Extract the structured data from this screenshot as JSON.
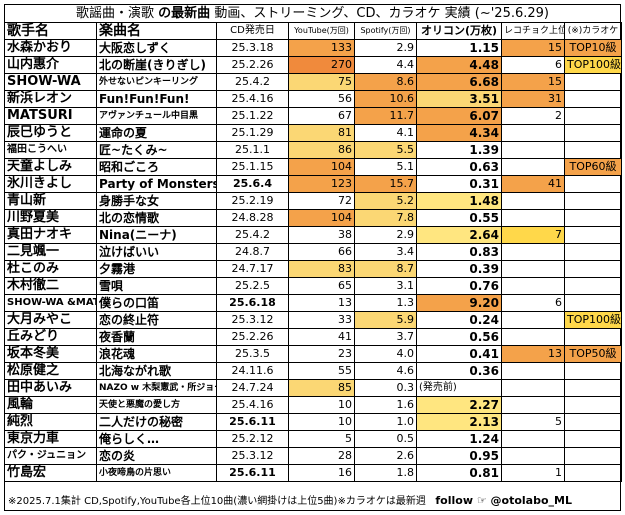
{
  "title": {
    "part1": "歌謡曲・演歌",
    "part2": "の最新曲",
    "part3": "動画、ストリーミング、CD、カラオケ 実績",
    "part4": "(~'25.6.29)"
  },
  "headers": {
    "artist": "歌手名",
    "song": "楽曲名",
    "date": "CD発売日",
    "youtube": "YouTube(万回)",
    "spotify": "Spotify(万回)",
    "oricon": "オリコン(万枚)",
    "recochoku": "レコチョク上位",
    "karaoke": "(※)カラオケ"
  },
  "rows": [
    {
      "artist": "水森かおり",
      "song": "大阪恋しずく",
      "date": "25.3.18",
      "yt": "133",
      "sp": "2.9",
      "or": "1.15",
      "rc": "15",
      "kr": "TOP10級"
    },
    {
      "artist": "山内惠介",
      "song": "北の断崖(きりぎし)",
      "date": "25.2.26",
      "yt": "270",
      "sp": "4.4",
      "or": "4.48",
      "rc": "6",
      "kr": "TOP100級"
    },
    {
      "artist": "SHOW-WA",
      "song": "外せないピンキーリング",
      "date": "25.4.2",
      "yt": "75",
      "sp": "8.6",
      "or": "6.68",
      "rc": "15",
      "kr": ""
    },
    {
      "artist": "新浜レオン",
      "song": "Fun!Fun!Fun!",
      "date": "25.4.16",
      "yt": "56",
      "sp": "10.6",
      "or": "3.51",
      "rc": "31",
      "kr": ""
    },
    {
      "artist": "MATSURI",
      "song": "アヴァンチュール中目黒",
      "date": "25.1.22",
      "yt": "67",
      "sp": "11.7",
      "or": "6.07",
      "rc": "2",
      "kr": ""
    },
    {
      "artist": "辰巳ゆうと",
      "song": "運命の夏",
      "date": "25.1.29",
      "yt": "81",
      "sp": "4.1",
      "or": "4.34",
      "rc": "",
      "kr": ""
    },
    {
      "artist": "福田こうへい",
      "song": "匠~たくみ~",
      "date": "25.1.1",
      "yt": "86",
      "sp": "5.5",
      "or": "1.39",
      "rc": "",
      "kr": ""
    },
    {
      "artist": "天童よしみ",
      "song": "昭和ごころ",
      "date": "25.1.15",
      "yt": "104",
      "sp": "5.1",
      "or": "0.63",
      "rc": "",
      "kr": "TOP60級"
    },
    {
      "artist": "氷川きよし",
      "song": "Party of Monsters",
      "date": "25.6.4",
      "yt": "123",
      "sp": "15.7",
      "or": "0.31",
      "rc": "41",
      "kr": ""
    },
    {
      "artist": "青山新",
      "song": "身勝手な女",
      "date": "25.2.19",
      "yt": "72",
      "sp": "5.2",
      "or": "1.48",
      "rc": "",
      "kr": ""
    },
    {
      "artist": "川野夏美",
      "song": "北の恋情歌",
      "date": "24.8.28",
      "yt": "104",
      "sp": "7.8",
      "or": "0.55",
      "rc": "",
      "kr": ""
    },
    {
      "artist": "真田ナオキ",
      "song": "Nina(ニーナ)",
      "date": "25.4.2",
      "yt": "38",
      "sp": "2.9",
      "or": "2.64",
      "rc": "7",
      "kr": ""
    },
    {
      "artist": "二見颯一",
      "song": "泣けばいい",
      "date": "24.8.7",
      "yt": "66",
      "sp": "3.4",
      "or": "0.83",
      "rc": "",
      "kr": ""
    },
    {
      "artist": "杜このみ",
      "song": "夕霧港",
      "date": "24.7.17",
      "yt": "83",
      "sp": "8.7",
      "or": "0.39",
      "rc": "",
      "kr": ""
    },
    {
      "artist": "木村徹二",
      "song": "雪唄",
      "date": "25.2.5",
      "yt": "65",
      "sp": "3.1",
      "or": "0.76",
      "rc": "",
      "kr": ""
    },
    {
      "artist": "SHOW-WA &MATSURI",
      "song": "僕らの口笛",
      "date": "25.6.18",
      "yt": "13",
      "sp": "1.3",
      "or": "9.20",
      "rc": "6",
      "kr": ""
    },
    {
      "artist": "大月みやこ",
      "song": "恋の終止符",
      "date": "25.3.12",
      "yt": "33",
      "sp": "5.9",
      "or": "0.24",
      "rc": "",
      "kr": "TOP100級"
    },
    {
      "artist": "丘みどり",
      "song": "夜香蘭",
      "date": "25.2.26",
      "yt": "41",
      "sp": "3.7",
      "or": "0.56",
      "rc": "",
      "kr": ""
    },
    {
      "artist": "坂本冬美",
      "song": "浪花魂",
      "date": "25.3.5",
      "yt": "23",
      "sp": "4.0",
      "or": "0.41",
      "rc": "13",
      "kr": "TOP50級"
    },
    {
      "artist": "松原健之",
      "song": "北海ながれ歌",
      "date": "24.11.6",
      "yt": "55",
      "sp": "4.6",
      "or": "0.36",
      "rc": "",
      "kr": ""
    },
    {
      "artist": "田中あいみ",
      "song": "NAZO w 木梨憲武・所ジョージ",
      "date": "24.7.24",
      "yt": "85",
      "sp": "0.3",
      "or": "(発売前)",
      "rc": "",
      "kr": ""
    },
    {
      "artist": "風輪",
      "song": "天使と悪魔の愛し方",
      "date": "25.4.16",
      "yt": "10",
      "sp": "1.6",
      "or": "2.27",
      "rc": "",
      "kr": ""
    },
    {
      "artist": "純烈",
      "song": "二人だけの秘密",
      "date": "25.6.11",
      "yt": "10",
      "sp": "1.0",
      "or": "2.13",
      "rc": "5",
      "kr": ""
    },
    {
      "artist": "東京力車",
      "song": "俺らしく…",
      "date": "25.2.12",
      "yt": "5",
      "sp": "0.5",
      "or": "1.24",
      "rc": "",
      "kr": ""
    },
    {
      "artist": "パク・ジュニョン",
      "song": "恋の炎",
      "date": "25.3.12",
      "yt": "28",
      "sp": "2.6",
      "or": "0.95",
      "rc": "",
      "kr": ""
    },
    {
      "artist": "竹島宏",
      "song": "小夜啼鳥の片思い",
      "date": "25.6.11",
      "yt": "16",
      "sp": "1.8",
      "or": "0.81",
      "rc": "1",
      "kr": ""
    }
  ],
  "footer": {
    "note": "※2025.7.1集計 CD,Spotify,YouTube各上位10曲(濃い網掛けは上位5曲)※カラオケは最新週",
    "follow": "follow ☞ @otolabo_ML"
  },
  "colors": {
    "light": "#fbd774",
    "dark": "#f4a24a",
    "yellow": "#ffe680"
  }
}
